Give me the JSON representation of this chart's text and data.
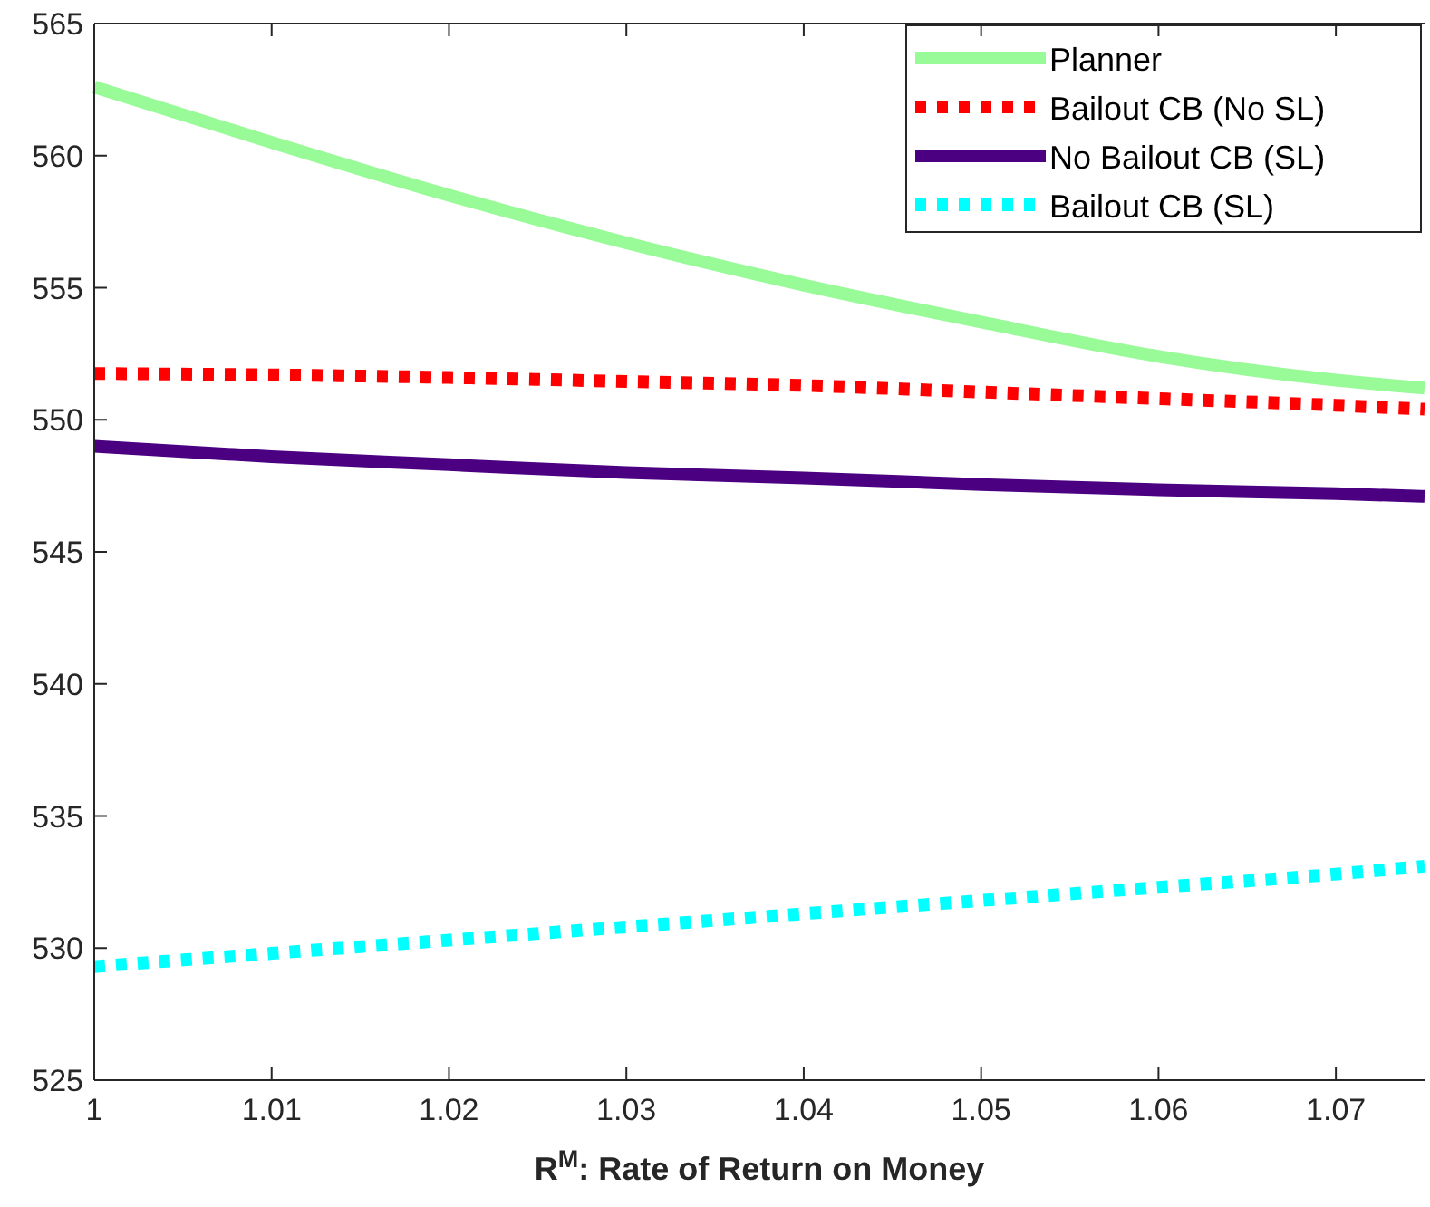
{
  "chart_data": {
    "type": "line",
    "xlabel": "R$^{M}$: Rate of Return on Money",
    "x": [
      1,
      1.01,
      1.02,
      1.03,
      1.04,
      1.05,
      1.06,
      1.07,
      1.075
    ],
    "series": [
      {
        "name": "Planner",
        "color": "#98fb98",
        "line_style": "solid",
        "values": [
          562.6,
          560.5,
          558.5,
          556.7,
          555.1,
          553.7,
          552.4,
          551.5,
          551.2
        ]
      },
      {
        "name": "Bailout CB (No SL)",
        "color": "#ff0000",
        "line_style": "dotted",
        "values": [
          551.75,
          551.7,
          551.6,
          551.45,
          551.3,
          551.05,
          550.8,
          550.55,
          550.4
        ]
      },
      {
        "name": "No Bailout CB (SL)",
        "color": "#4b0082",
        "line_style": "solid",
        "values": [
          549.0,
          548.6,
          548.3,
          548.0,
          547.8,
          547.55,
          547.35,
          547.2,
          547.1
        ]
      },
      {
        "name": "Bailout CB (SL)",
        "color": "#00ffff",
        "line_style": "dotted",
        "values": [
          529.3,
          529.8,
          530.3,
          530.8,
          531.3,
          531.8,
          532.3,
          532.8,
          533.1
        ]
      }
    ],
    "xlim": [
      1,
      1.075
    ],
    "xticks": [
      1,
      1.01,
      1.02,
      1.03,
      1.04,
      1.05,
      1.06,
      1.07
    ],
    "ylim": [
      525,
      565
    ],
    "yticks": [
      525,
      530,
      535,
      540,
      545,
      550,
      555,
      560,
      565
    ],
    "grid": false,
    "legend": "top right"
  }
}
